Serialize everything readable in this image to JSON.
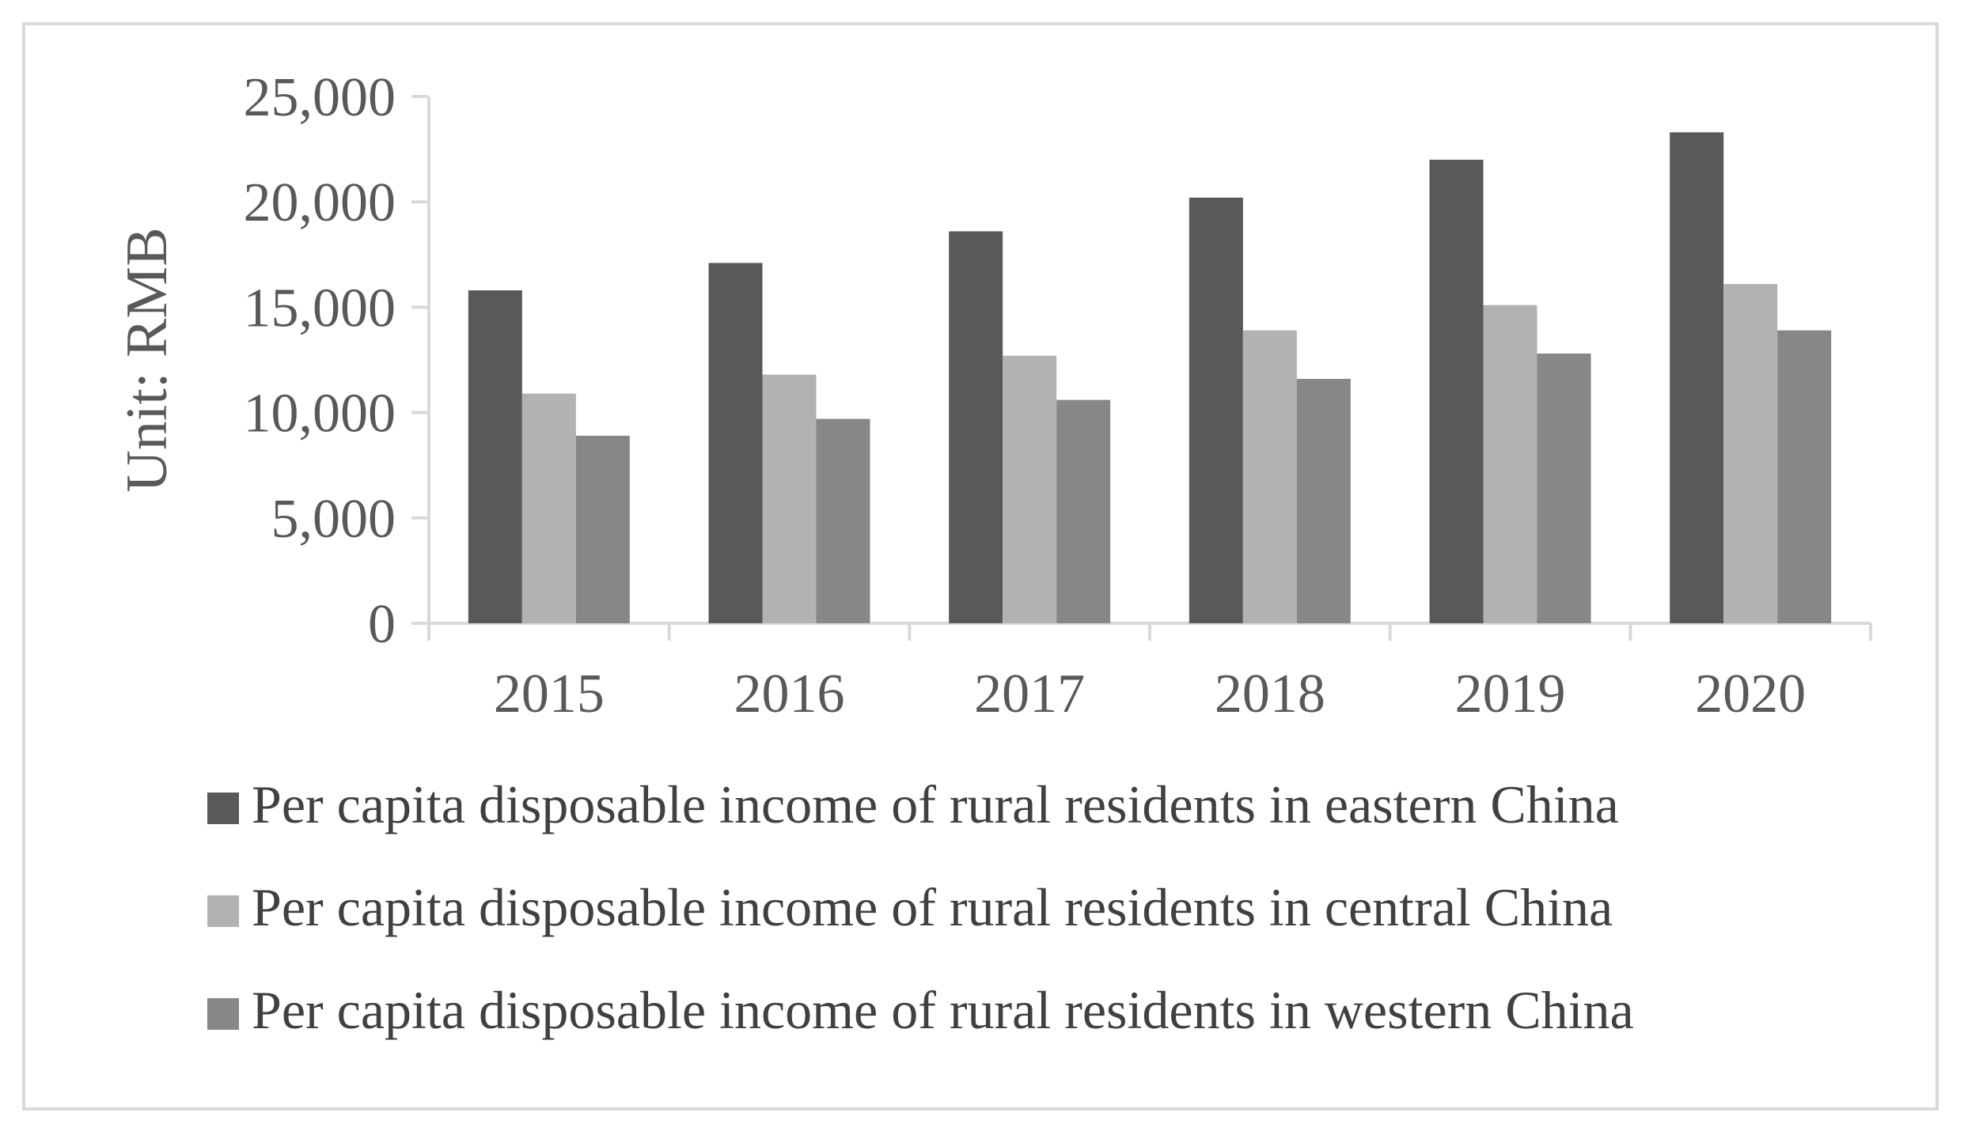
{
  "chart_data": {
    "type": "bar",
    "title": "",
    "xlabel": "",
    "ylabel": "Unit: RMB",
    "ylim": [
      0,
      25000
    ],
    "yticks": [
      0,
      5000,
      10000,
      15000,
      20000,
      25000
    ],
    "ytick_labels": [
      "0",
      "5,000",
      "10,000",
      "15,000",
      "20,000",
      "25,000"
    ],
    "categories": [
      "2015",
      "2016",
      "2017",
      "2018",
      "2019",
      "2020"
    ],
    "grid": false,
    "legend_position": "bottom",
    "series": [
      {
        "name": "Per capita disposable income of rural residents in eastern China",
        "color": "#595959",
        "values": [
          15800,
          17100,
          18600,
          20200,
          22000,
          23300
        ]
      },
      {
        "name": "Per capita disposable income of rural residents in central China",
        "color": "#b2b2b2",
        "values": [
          10900,
          11800,
          12700,
          13900,
          15100,
          16100
        ]
      },
      {
        "name": "Per capita disposable income of rural residents in western China",
        "color": "#878787",
        "values": [
          8900,
          9700,
          10600,
          11600,
          12800,
          13900
        ]
      }
    ]
  }
}
